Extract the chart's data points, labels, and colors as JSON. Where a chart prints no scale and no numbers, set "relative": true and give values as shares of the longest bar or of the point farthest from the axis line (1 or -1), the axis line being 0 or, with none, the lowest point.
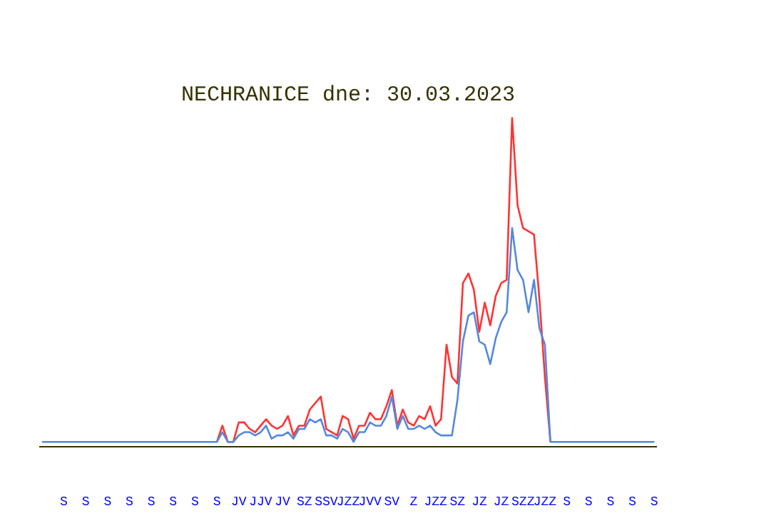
{
  "chart_data": {
    "type": "line",
    "title": "NECHRANICE dne: 30.03.2023",
    "relative": true,
    "grid": false,
    "categories": [
      null,
      null,
      null,
      null,
      "S",
      null,
      null,
      null,
      "S",
      null,
      null,
      null,
      "S",
      null,
      null,
      null,
      "S",
      null,
      null,
      null,
      "S",
      null,
      null,
      null,
      "S",
      null,
      null,
      null,
      "S",
      null,
      null,
      null,
      "S",
      null,
      null,
      null,
      "JV",
      null,
      null,
      null,
      "JJV",
      null,
      null,
      null,
      "JV",
      null,
      null,
      null,
      "SZ",
      null,
      null,
      null,
      "SSV",
      null,
      null,
      null,
      "JZZ",
      null,
      null,
      null,
      "JVV",
      null,
      null,
      null,
      "SV",
      null,
      null,
      null,
      "Z",
      null,
      null,
      null,
      "JZZ",
      null,
      null,
      null,
      "SZ",
      null,
      null,
      null,
      "JZ",
      null,
      null,
      null,
      "JZ",
      null,
      null,
      null,
      "SZZ",
      null,
      null,
      null,
      "JZZ",
      null,
      null,
      null,
      "S",
      null,
      null,
      null,
      "S",
      null,
      null,
      null,
      "S",
      null,
      null,
      null,
      "S",
      null,
      null,
      null,
      "S"
    ],
    "series": [
      {
        "color": "#ff3333",
        "values": [
          null,
          null,
          null,
          null,
          null,
          null,
          null,
          null,
          null,
          null,
          null,
          null,
          null,
          null,
          null,
          null,
          null,
          null,
          null,
          null,
          null,
          null,
          null,
          null,
          null,
          null,
          null,
          null,
          null,
          null,
          null,
          null,
          0,
          0.05,
          0,
          0,
          0.06,
          0.06,
          0.04,
          0.03,
          0.05,
          0.07,
          0.05,
          0.04,
          0.05,
          0.08,
          0.02,
          0.05,
          0.05,
          0.1,
          0.12,
          0.14,
          0.04,
          0.03,
          0.02,
          0.08,
          0.07,
          0.01,
          0.05,
          0.05,
          0.09,
          0.07,
          0.07,
          0.11,
          0.16,
          0.05,
          0.1,
          0.06,
          0.05,
          0.08,
          0.07,
          0.11,
          0.05,
          0.07,
          0.3,
          0.2,
          0.18,
          0.49,
          0.52,
          0.47,
          0.34,
          0.43,
          0.36,
          0.45,
          0.49,
          0.5,
          1,
          0.73,
          0.66,
          0.65,
          0.64,
          0.44,
          0.2,
          0,
          null,
          null,
          null,
          null,
          null,
          null,
          null,
          null,
          null,
          null,
          null,
          null,
          null,
          null,
          null,
          null,
          null,
          null,
          null
        ]
      },
      {
        "color": "#5588dd",
        "values": [
          0,
          0,
          0,
          0,
          0,
          0,
          0,
          0,
          0,
          0,
          0,
          0,
          0,
          0,
          0,
          0,
          0,
          0,
          0,
          0,
          0,
          0,
          0,
          0,
          0,
          0,
          0,
          0,
          0,
          0,
          0,
          0,
          0,
          0.03,
          0,
          0,
          0.02,
          0.03,
          0.03,
          0.02,
          0.03,
          0.05,
          0.01,
          0.02,
          0.02,
          0.03,
          0.01,
          0.04,
          0.04,
          0.07,
          0.06,
          0.07,
          0.02,
          0.02,
          0.01,
          0.04,
          0.03,
          0,
          0.03,
          0.03,
          0.06,
          0.05,
          0.05,
          0.08,
          0.14,
          0.04,
          0.08,
          0.04,
          0.04,
          0.05,
          0.04,
          0.05,
          0.03,
          0.02,
          0.02,
          0.02,
          0.13,
          0.31,
          0.39,
          0.4,
          0.31,
          0.3,
          0.24,
          0.32,
          0.37,
          0.4,
          0.66,
          0.53,
          0.5,
          0.4,
          0.5,
          0.35,
          0.3,
          0,
          0,
          0,
          0,
          0,
          0,
          0,
          0,
          0,
          0,
          0,
          0,
          0,
          0,
          0,
          0,
          0,
          0,
          0,
          0
        ]
      }
    ]
  }
}
